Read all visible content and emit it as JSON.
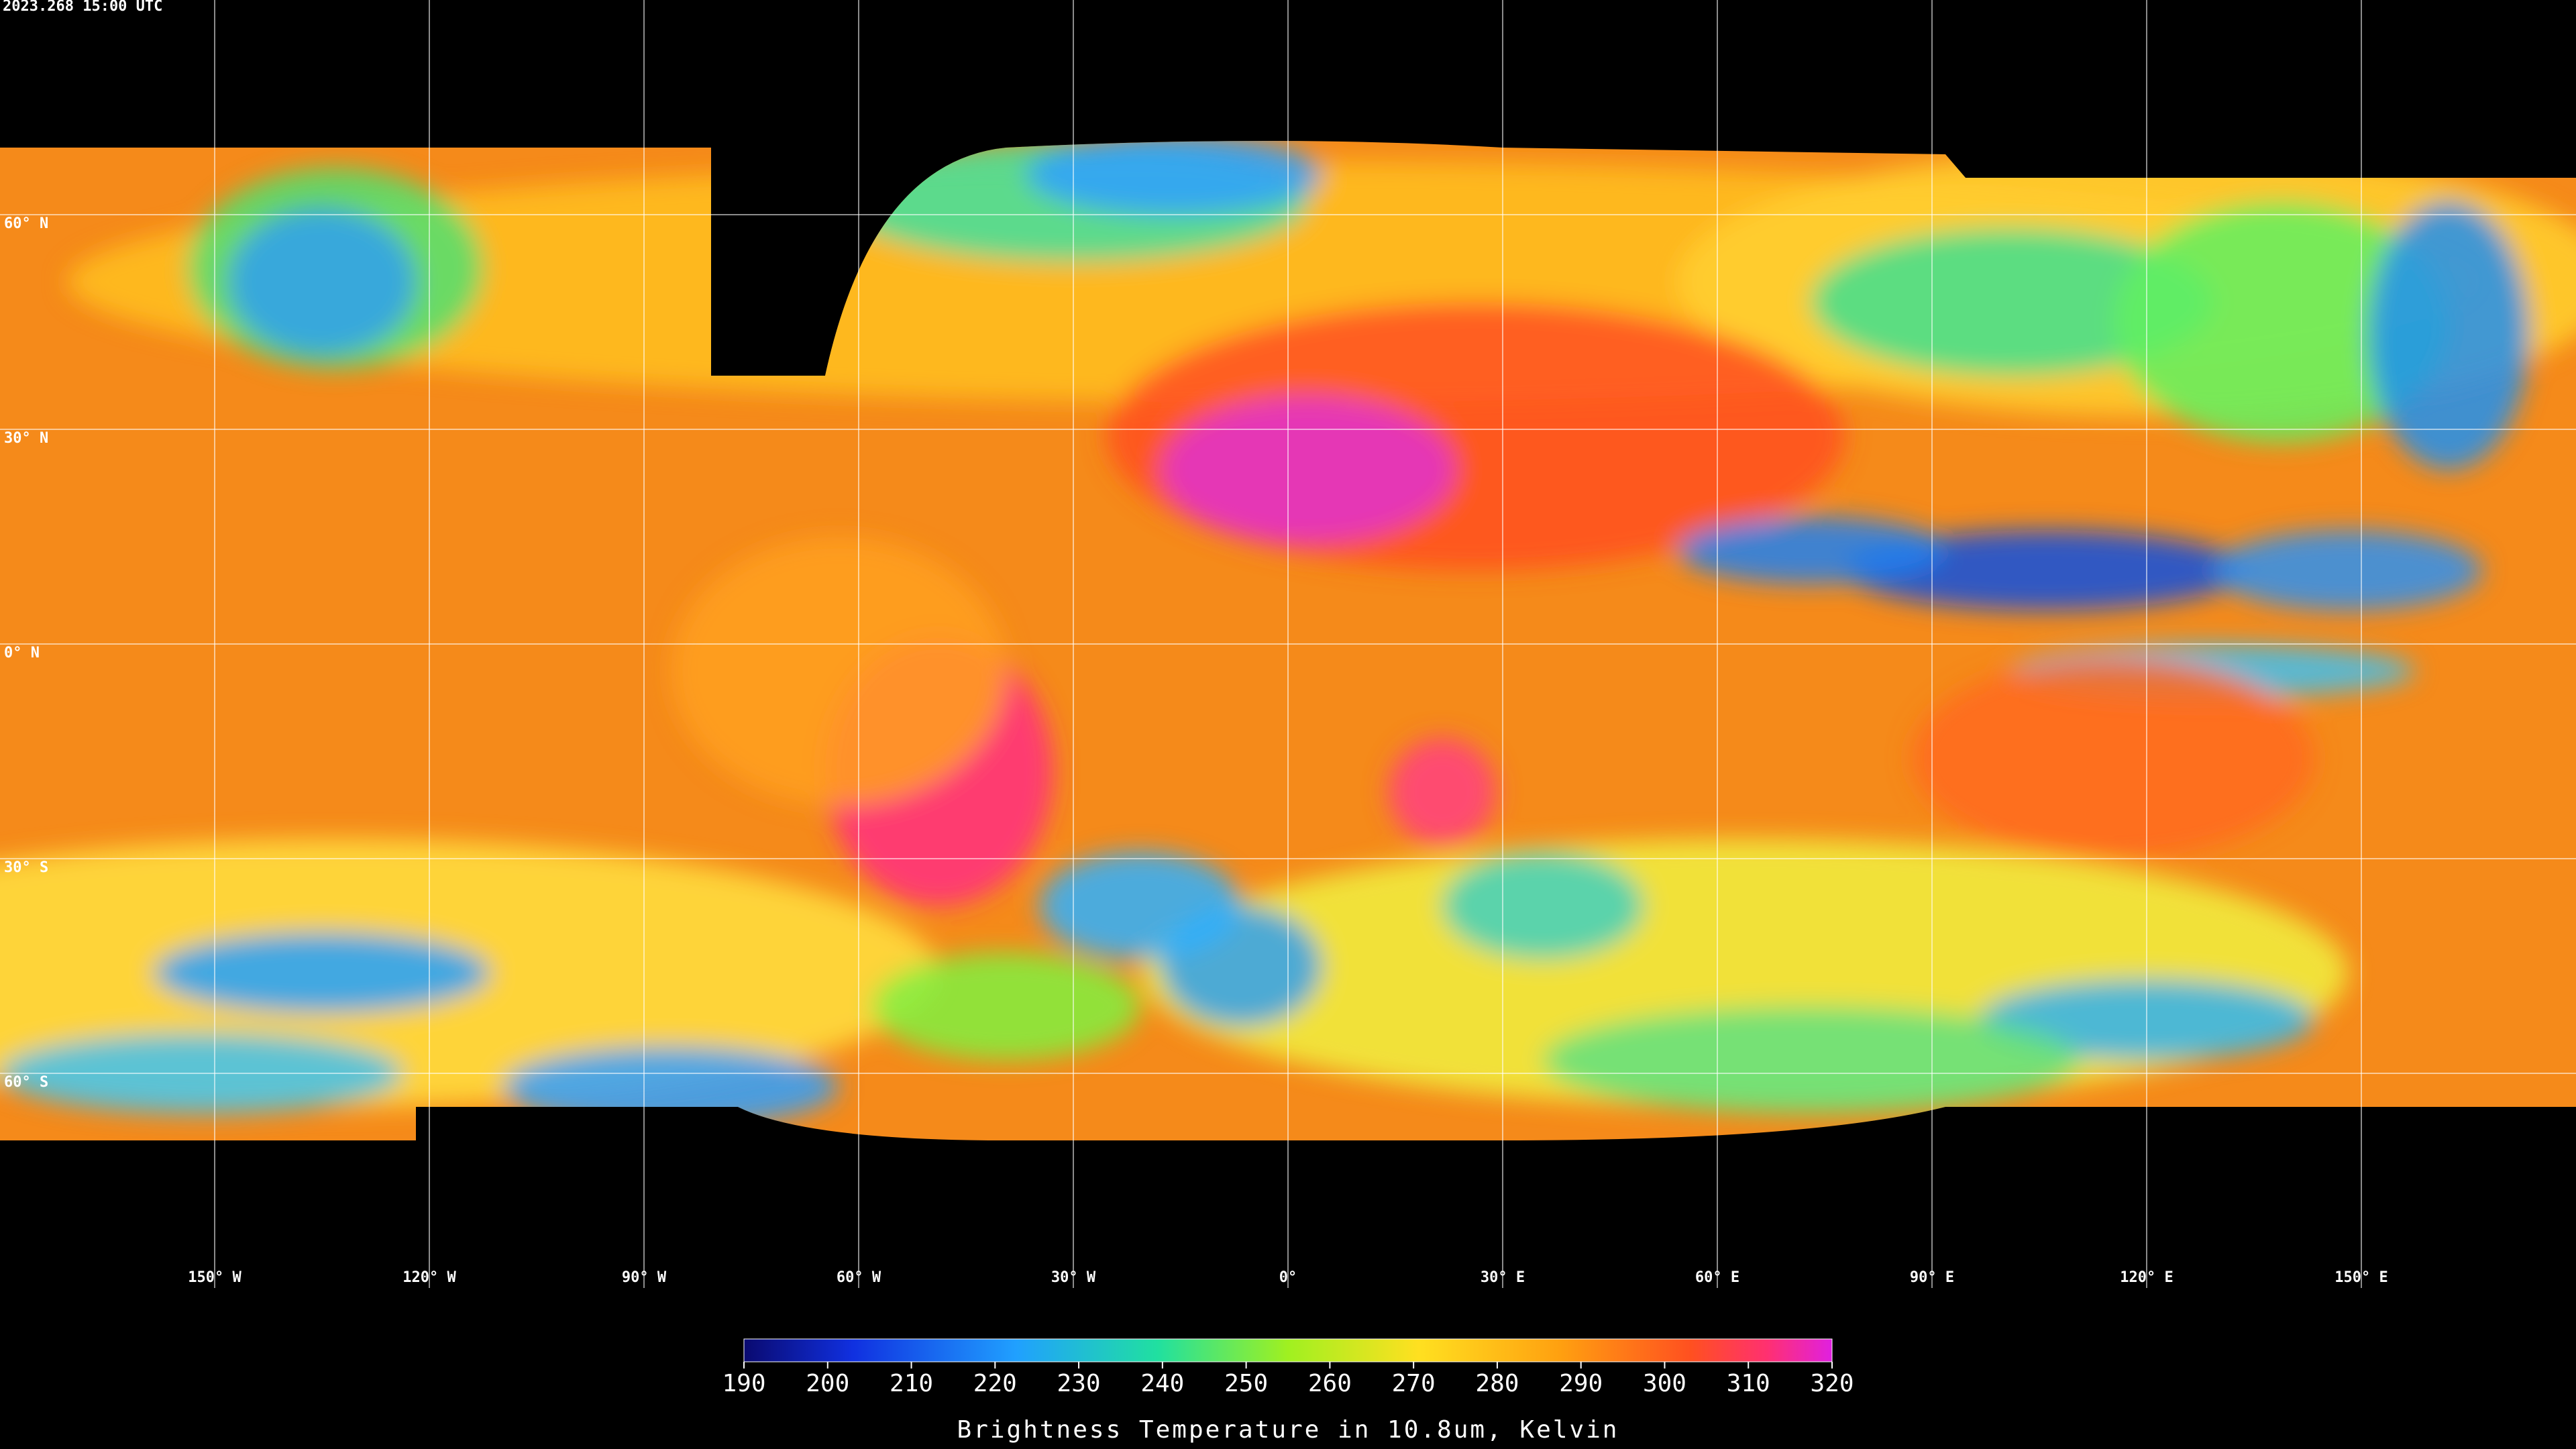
{
  "timestamp": "2023.268 15:00 UTC",
  "map": {
    "lon_range": [
      -180,
      180
    ],
    "lat_range": [
      90,
      -90
    ],
    "lat_lines": [
      {
        "value": 60,
        "label": "60° N"
      },
      {
        "value": 30,
        "label": "30° N"
      },
      {
        "value": 0,
        "label": "0° N"
      },
      {
        "value": -30,
        "label": "30° S"
      },
      {
        "value": -60,
        "label": "60° S"
      }
    ],
    "lon_lines": [
      {
        "value": -150,
        "label": "150° W"
      },
      {
        "value": -120,
        "label": "120° W"
      },
      {
        "value": -90,
        "label": "90° W"
      },
      {
        "value": -60,
        "label": "60° W"
      },
      {
        "value": -30,
        "label": "30° W"
      },
      {
        "value": 0,
        "label": "0°"
      },
      {
        "value": 30,
        "label": "30° E"
      },
      {
        "value": 60,
        "label": "60° E"
      },
      {
        "value": 90,
        "label": "90° E"
      },
      {
        "value": 120,
        "label": "120° E"
      },
      {
        "value": 150,
        "label": "150° E"
      }
    ]
  },
  "colorbar": {
    "range": [
      190,
      320
    ],
    "ticks": [
      190,
      200,
      210,
      220,
      230,
      240,
      250,
      260,
      270,
      280,
      290,
      300,
      310,
      320
    ],
    "label": "Brightness Temperature in 10.8um, Kelvin"
  }
}
